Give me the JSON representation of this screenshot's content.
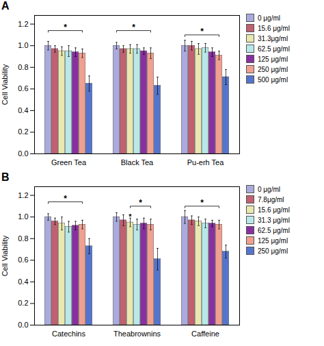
{
  "chart_data": [
    {
      "type": "bar",
      "title": "A",
      "categories": [
        "Green Tea",
        "Black Tea",
        "Pu-erh Tea"
      ],
      "series": [
        {
          "name": "0 μg/ml",
          "color": "#aaaadd",
          "values": [
            1.0,
            1.0,
            1.0
          ],
          "errors": [
            0.04,
            0.03,
            0.05
          ]
        },
        {
          "name": "15.6 μg/ml",
          "color": "#c06070",
          "values": [
            0.97,
            0.97,
            1.0
          ],
          "errors": [
            0.03,
            0.03,
            0.04
          ]
        },
        {
          "name": "31.3μg/ml",
          "color": "#e8e8b0",
          "values": [
            0.95,
            0.97,
            0.97
          ],
          "errors": [
            0.04,
            0.04,
            0.05
          ]
        },
        {
          "name": "62.5 μg/ml",
          "color": "#b8e8e8",
          "values": [
            0.95,
            0.97,
            0.98
          ],
          "errors": [
            0.05,
            0.04,
            0.04
          ]
        },
        {
          "name": "125 μg/ml",
          "color": "#8830a0",
          "values": [
            0.94,
            0.95,
            0.94
          ],
          "errors": [
            0.04,
            0.03,
            0.04
          ]
        },
        {
          "name": "250 μg/ml",
          "color": "#f0a090",
          "values": [
            0.93,
            0.93,
            0.91
          ],
          "errors": [
            0.04,
            0.05,
            0.04
          ]
        },
        {
          "name": "500 μg/ml",
          "color": "#5575cc",
          "values": [
            0.65,
            0.63,
            0.71
          ],
          "errors": [
            0.07,
            0.08,
            0.07
          ]
        }
      ],
      "annotations": [
        {
          "text": "*",
          "category": "Green Tea",
          "from": "0 μg/ml",
          "to": "250 μg/ml",
          "y": 1.14
        },
        {
          "text": "*",
          "category": "Black Tea",
          "from": "0 μg/ml",
          "to": "250 μg/ml",
          "y": 1.14
        },
        {
          "text": "*",
          "category": "Pu-erh Tea",
          "from": "0 μg/ml",
          "to": "250 μg/ml",
          "y": 1.1
        }
      ],
      "y_label": "Cell Viability",
      "ylim": [
        0,
        1.28
      ],
      "yticks": [
        {
          "value": 0,
          "label": "0.0"
        },
        0.2,
        0.4,
        0.6,
        0.8,
        {
          "value": 1.0,
          "label": "1.0"
        },
        1.2
      ],
      "grid": false,
      "legend": "right"
    },
    {
      "type": "bar",
      "title": "B",
      "categories": [
        "Catechins",
        "Theabrownins",
        "Caffeine"
      ],
      "series": [
        {
          "name": "0 μg/ml",
          "color": "#aaaadd",
          "values": [
            1.0,
            1.0,
            1.0
          ],
          "errors": [
            0.03,
            0.04,
            0.06
          ]
        },
        {
          "name": "7.8μg/ml",
          "color": "#c06070",
          "values": [
            0.96,
            0.97,
            0.97
          ],
          "errors": [
            0.03,
            0.05,
            0.04
          ]
        },
        {
          "name": "15.6 μg/ml",
          "color": "#e8e8b0",
          "values": [
            0.94,
            0.95,
            0.96
          ],
          "errors": [
            0.06,
            0.04,
            0.04
          ]
        },
        {
          "name": "31.3 μg/ml",
          "color": "#b8e8e8",
          "values": [
            0.91,
            0.93,
            0.94
          ],
          "errors": [
            0.05,
            0.05,
            0.04
          ]
        },
        {
          "name": "62.5 μg/ml",
          "color": "#8830a0",
          "values": [
            0.92,
            0.94,
            0.94
          ],
          "errors": [
            0.04,
            0.05,
            0.03
          ]
        },
        {
          "name": "125 μg/ml",
          "color": "#f0a090",
          "values": [
            0.93,
            0.93,
            0.93
          ],
          "errors": [
            0.04,
            0.05,
            0.04
          ]
        },
        {
          "name": "250 μg/ml",
          "color": "#5575cc",
          "values": [
            0.73,
            0.61,
            0.68
          ],
          "errors": [
            0.07,
            0.1,
            0.06
          ]
        }
      ],
      "annotations": [
        {
          "text": "*",
          "category": "Catechins",
          "from": "0 μg/ml",
          "to": "125 μg/ml",
          "y": 1.14
        },
        {
          "text": "*",
          "category": "Theabrownins",
          "from": "15.6 μg/ml",
          "to": "125 μg/ml",
          "y": 1.1
        },
        {
          "text": "*",
          "category": "Theabrownins",
          "series": "15.6 μg/ml",
          "y": 0.975
        },
        {
          "text": "*",
          "category": "Caffeine",
          "from": "0 μg/ml",
          "to": "125 μg/ml",
          "y": 1.1
        }
      ],
      "y_label": "Cell Viability",
      "ylim": [
        0,
        1.28
      ],
      "yticks": [
        {
          "value": 0,
          "label": "0.0"
        },
        0.2,
        0.4,
        0.6,
        0.8,
        {
          "value": 1.0,
          "label": "1.0"
        },
        1.2
      ],
      "grid": false,
      "legend": "right"
    }
  ]
}
